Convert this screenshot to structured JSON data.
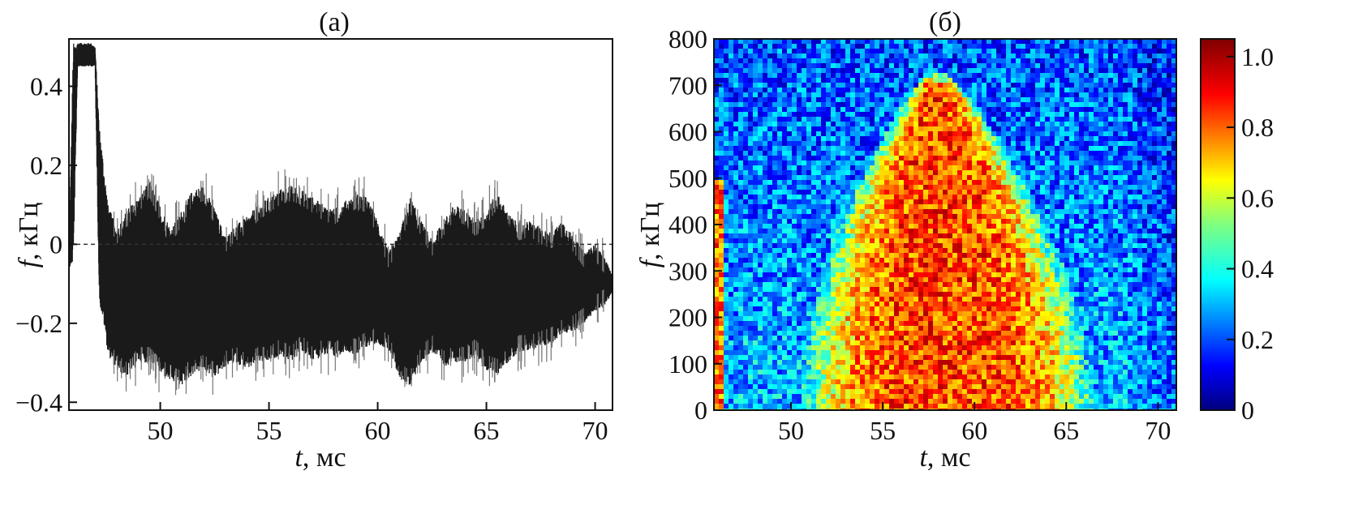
{
  "chart_data": [
    {
      "panel": "a",
      "type": "line",
      "title": "(а)",
      "xlabel_var": "t",
      "xlabel_unit": ", мс",
      "ylabel_var": "f",
      "ylabel_unit": ", кГц",
      "xlim": [
        45.8,
        70.8
      ],
      "ylim": [
        -0.42,
        0.52
      ],
      "xticks": [
        50,
        55,
        60,
        65,
        70
      ],
      "xtick_labels": [
        "50",
        "55",
        "60",
        "65",
        "70"
      ],
      "yticks": [
        -0.4,
        -0.2,
        0,
        0.2,
        0.4
      ],
      "ytick_labels": [
        "−0.4",
        "−0.2",
        "0",
        "0.2",
        "0.4"
      ],
      "reference_line_y": 0,
      "series": [
        {
          "envelope_t": [
            45.8,
            46.0,
            46.2,
            46.5,
            46.8,
            47.0,
            47.2,
            47.4,
            47.6,
            48.0,
            48.5,
            49.0,
            49.5,
            50.0,
            50.5,
            51.0,
            51.5,
            52.0,
            52.5,
            53.0,
            53.5,
            54.0,
            54.5,
            55.0,
            55.5,
            56.0,
            56.5,
            57.0,
            57.5,
            58.0,
            58.5,
            59.0,
            59.5,
            60.0,
            60.5,
            61.0,
            61.5,
            62.0,
            62.5,
            63.0,
            63.5,
            64.0,
            64.5,
            65.0,
            65.5,
            66.0,
            66.5,
            67.0,
            67.5,
            68.0,
            68.5,
            69.0,
            69.5,
            70.0,
            70.5,
            70.8
          ],
          "upper": [
            -0.05,
            0.51,
            0.51,
            0.51,
            0.51,
            0.5,
            0.3,
            0.2,
            0.1,
            0.04,
            0.09,
            0.12,
            0.16,
            0.1,
            0.04,
            0.09,
            0.14,
            0.15,
            0.09,
            0.02,
            0.05,
            0.07,
            0.1,
            0.12,
            0.14,
            0.15,
            0.14,
            0.12,
            0.1,
            0.09,
            0.11,
            0.13,
            0.12,
            0.06,
            -0.02,
            0.03,
            0.12,
            0.06,
            0.01,
            0.06,
            0.1,
            0.09,
            0.06,
            0.09,
            0.13,
            0.08,
            0.05,
            0.06,
            0.04,
            0.03,
            0.06,
            0.02,
            -0.02,
            0.0,
            -0.04,
            -0.08
          ],
          "lower": [
            -0.06,
            -0.05,
            0.45,
            0.45,
            0.45,
            0.45,
            -0.15,
            -0.2,
            -0.28,
            -0.32,
            -0.34,
            -0.3,
            -0.3,
            -0.33,
            -0.35,
            -0.36,
            -0.33,
            -0.32,
            -0.34,
            -0.31,
            -0.3,
            -0.32,
            -0.3,
            -0.3,
            -0.28,
            -0.3,
            -0.27,
            -0.3,
            -0.28,
            -0.29,
            -0.27,
            -0.28,
            -0.26,
            -0.25,
            -0.27,
            -0.34,
            -0.36,
            -0.3,
            -0.27,
            -0.31,
            -0.3,
            -0.3,
            -0.28,
            -0.32,
            -0.33,
            -0.3,
            -0.27,
            -0.27,
            -0.26,
            -0.25,
            -0.23,
            -0.22,
            -0.2,
            -0.17,
            -0.15,
            -0.12
          ]
        }
      ]
    },
    {
      "panel": "б",
      "type": "heatmap",
      "title": "(б)",
      "xlabel_var": "t",
      "xlabel_unit": ", мс",
      "ylabel_var": "f",
      "ylabel_unit": ", кГц",
      "xlim": [
        45.8,
        71.0
      ],
      "ylim": [
        0,
        800
      ],
      "xticks": [
        50,
        55,
        60,
        65,
        70
      ],
      "xtick_labels": [
        "50",
        "55",
        "60",
        "65",
        "70"
      ],
      "yticks": [
        0,
        100,
        200,
        300,
        400,
        500,
        600,
        700,
        800
      ],
      "ytick_labels": [
        "0",
        "100",
        "200",
        "300",
        "400",
        "500",
        "600",
        "700",
        "800"
      ],
      "high_intensity_region": {
        "t_range": [
          49,
          65
        ],
        "f_range": [
          0,
          700
        ],
        "peak_t": 58,
        "level": 0.85
      },
      "colorbar": {
        "range": [
          0,
          1.05
        ],
        "ticks": [
          0,
          0.2,
          0.4,
          0.6,
          0.8,
          1.0
        ],
        "tick_labels": [
          "0",
          "0.2",
          "0.4",
          "0.6",
          "0.8",
          "1.0"
        ],
        "colormap": "jet"
      }
    }
  ]
}
